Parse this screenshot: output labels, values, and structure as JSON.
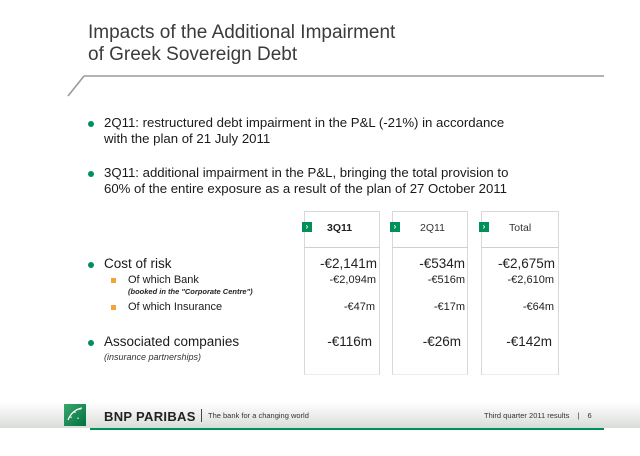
{
  "title_line1": "Impacts of the Additional Impairment",
  "title_line2": "of Greek Sovereign Debt",
  "bullets": [
    {
      "line1": "2Q11: restructured debt impairment in the P&L (-21%) in accordance",
      "line2": "with the plan of 21 July 2011"
    },
    {
      "line1": "3Q11: additional impairment in the P&L, bringing the total provision to",
      "line2": "60% of the entire exposure as a result of the plan of 27 October 2011"
    }
  ],
  "columns": [
    "3Q11",
    "2Q11",
    "Total"
  ],
  "rows": {
    "cost_of_risk": {
      "label": "Cost of risk",
      "values": [
        "-€2,141m",
        "-€534m",
        "-€2,675m"
      ]
    },
    "bank": {
      "label": "Of which Bank",
      "note": "(booked in the \"Corporate Centre\")",
      "values": [
        "-€2,094m",
        "-€516m",
        "-€2,610m"
      ]
    },
    "insurance": {
      "label": "Of which Insurance",
      "values": [
        "-€47m",
        "-€17m",
        "-€64m"
      ]
    },
    "associated": {
      "label": "Associated companies",
      "note": "(insurance partnerships)",
      "values": [
        "-€116m",
        "-€26m",
        "-€142m"
      ]
    }
  },
  "footer": {
    "brand": "BNP PARIBAS",
    "tagline": "The bank for a changing world",
    "right": "Third quarter 2011 results",
    "separator": "|",
    "page": "6"
  },
  "colors": {
    "green": "#00915a",
    "orange": "#f3a33b"
  },
  "icons": {
    "bullet": "green-dot-icon",
    "sub_bullet": "orange-square-icon",
    "column_marker": "chevron-right-icon",
    "logo": "bnp-stars-logo-icon"
  }
}
